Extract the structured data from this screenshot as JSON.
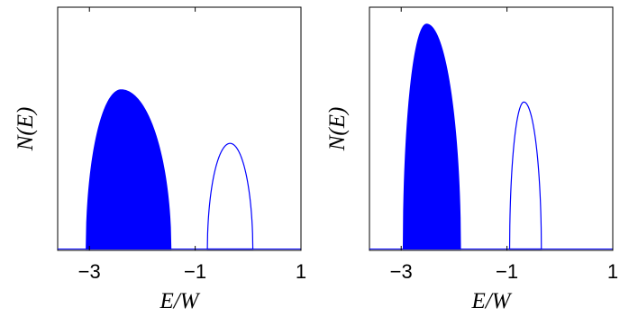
{
  "chart_data": [
    {
      "type": "area",
      "xlabel": "E/W",
      "ylabel": "N(E)",
      "xlim": [
        -3.6,
        1.0
      ],
      "ylim": [
        0,
        1.0
      ],
      "xticks": [
        -3,
        -1,
        1
      ],
      "xtick_labels": [
        "−3",
        "−1",
        "1"
      ],
      "grid": false,
      "color": "#0000ff",
      "series": [
        {
          "style": "filled",
          "band": [
            -3.06,
            -1.46
          ],
          "peak_x": -2.4,
          "peak_y": 0.66
        },
        {
          "style": "outline",
          "band": [
            -0.77,
            0.09
          ],
          "peak_x": -0.34,
          "peak_y": 0.44
        }
      ]
    },
    {
      "type": "area",
      "xlabel": "E/W",
      "ylabel": "N(E)",
      "xlim": [
        -3.6,
        1.0
      ],
      "ylim": [
        0,
        1.0
      ],
      "xticks": [
        -3,
        -1,
        1
      ],
      "xtick_labels": [
        "−3",
        "−1",
        "1"
      ],
      "grid": false,
      "color": "#0000ff",
      "series": [
        {
          "style": "filled",
          "band": [
            -2.96,
            -1.88
          ],
          "peak_x": -2.52,
          "peak_y": 0.93
        },
        {
          "style": "outline",
          "band": [
            -0.95,
            -0.35
          ],
          "peak_x": -0.68,
          "peak_y": 0.61
        }
      ]
    }
  ]
}
